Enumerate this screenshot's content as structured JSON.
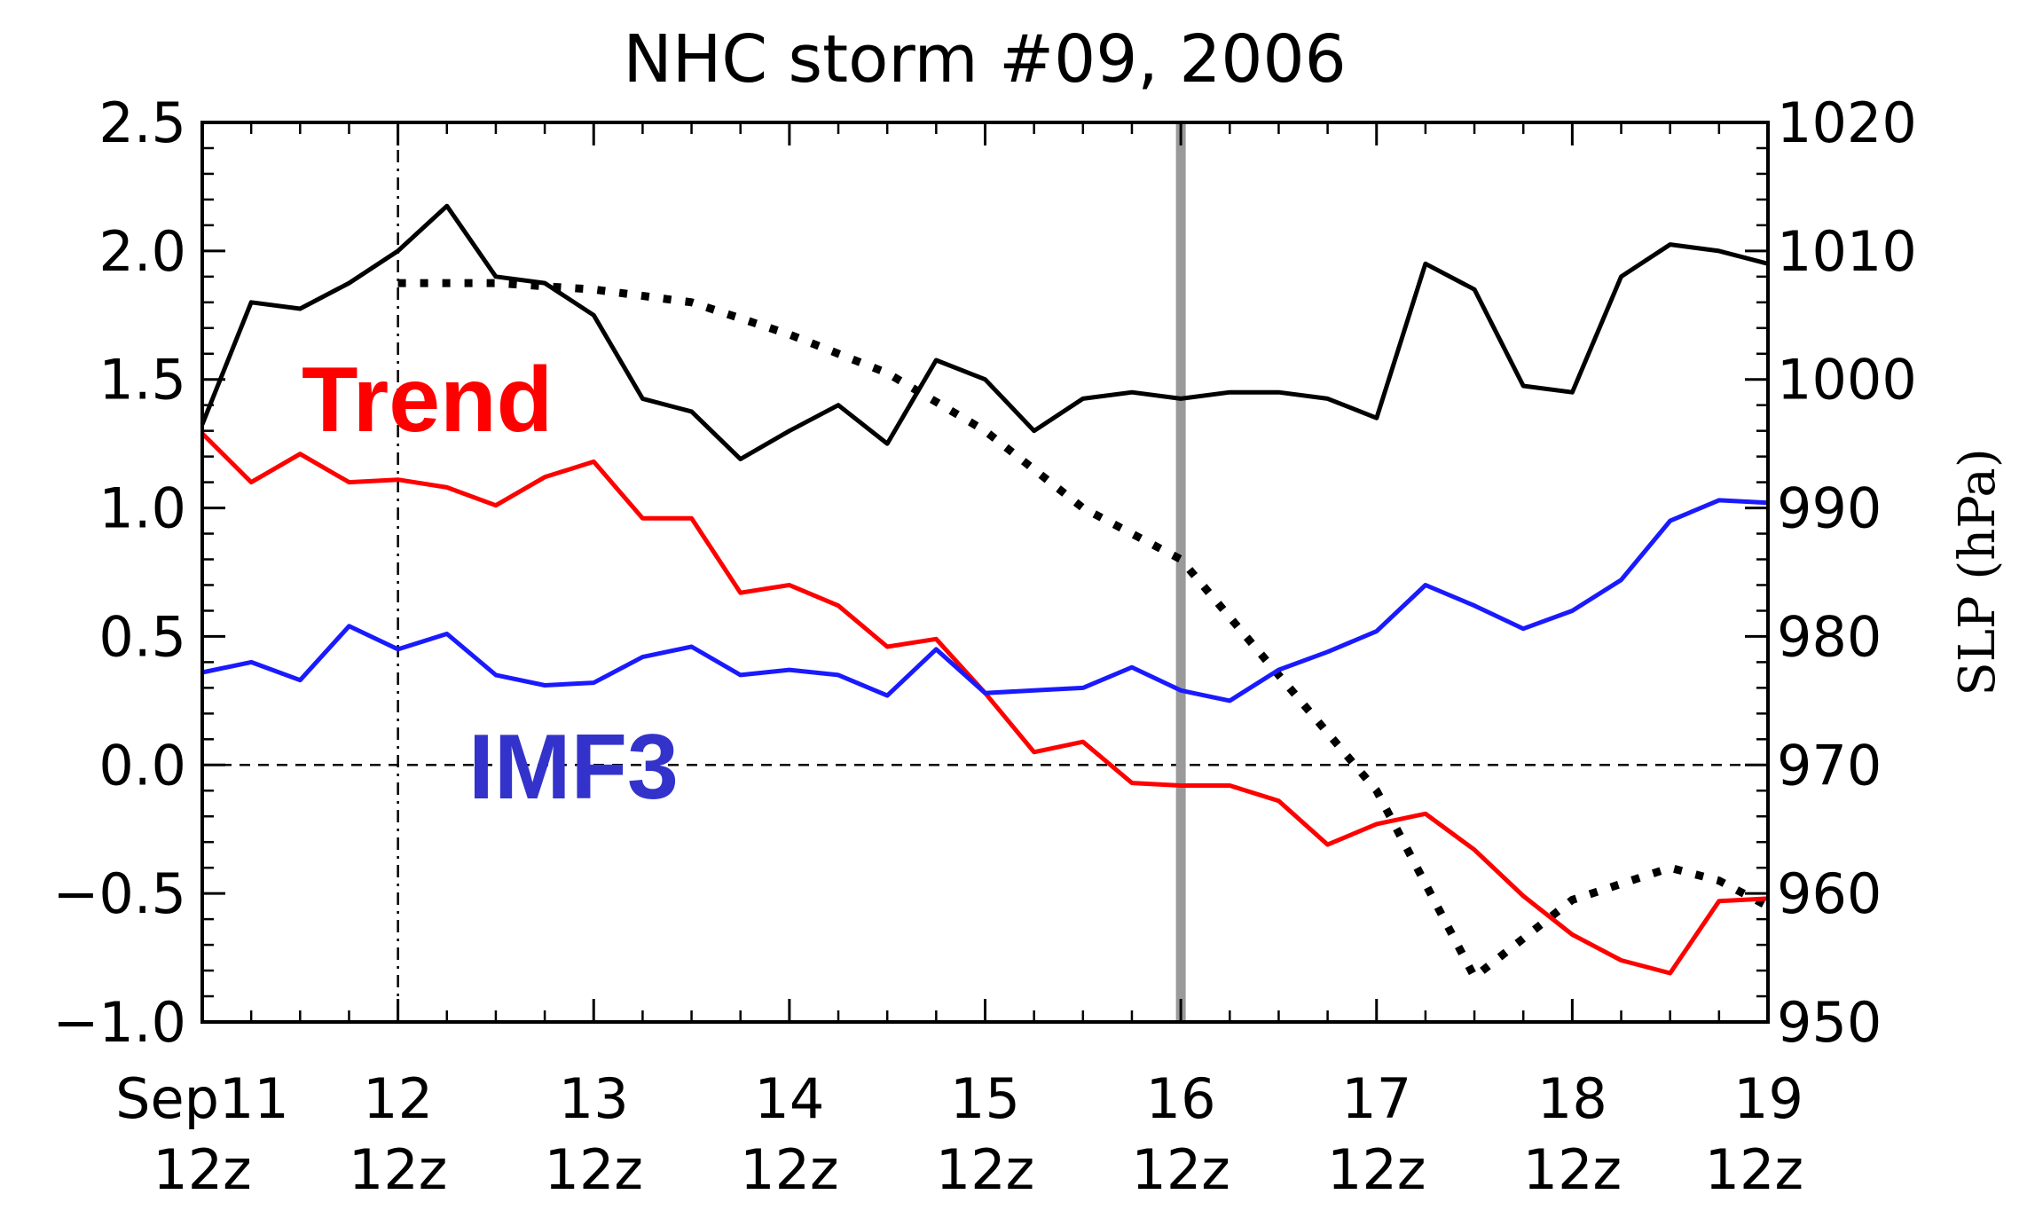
{
  "chart_data": {
    "type": "line",
    "title": "NHC storm #09,  2006",
    "x_ticks": [
      {
        "x": 0,
        "line1": "Sep11",
        "line2": "12z"
      },
      {
        "x": 1,
        "line1": "12",
        "line2": "12z"
      },
      {
        "x": 2,
        "line1": "13",
        "line2": "12z"
      },
      {
        "x": 3,
        "line1": "14",
        "line2": "12z"
      },
      {
        "x": 4,
        "line1": "15",
        "line2": "12z"
      },
      {
        "x": 5,
        "line1": "16",
        "line2": "12z"
      },
      {
        "x": 6,
        "line1": "17",
        "line2": "12z"
      },
      {
        "x": 7,
        "line1": "18",
        "line2": "12z"
      },
      {
        "x": 8,
        "line1": "19",
        "line2": "12z"
      }
    ],
    "xlim": [
      0,
      8
    ],
    "ylim_left": [
      -1.0,
      2.5
    ],
    "ylim_right": [
      950,
      1020
    ],
    "y_ticks_left": [
      "2.5",
      "2.0",
      "1.5",
      "1.0",
      "0.5",
      "0.0",
      "-0.5",
      "-1.0"
    ],
    "y_ticks_right": [
      "1020",
      "1010",
      "1000",
      "990",
      "980",
      "970",
      "960",
      "950"
    ],
    "ylabel_right": "SLP (hPa)",
    "reference_lines": [
      {
        "orientation": "horizontal",
        "axis": "left",
        "value": 0.0,
        "style": "dashed"
      },
      {
        "orientation": "vertical",
        "value": 1,
        "style": "dash-dot"
      },
      {
        "orientation": "vertical",
        "value": 5,
        "style": "solid-gray"
      }
    ],
    "annotations": [
      {
        "text": "Trend",
        "color": "#ff0000"
      },
      {
        "text": "IMF3",
        "color": "#3333cc"
      }
    ],
    "series": [
      {
        "name": "SLP",
        "axis": "right",
        "color": "#000000",
        "style": "solid",
        "x": [
          0,
          0.25,
          0.5,
          0.75,
          1.0,
          1.25,
          1.5,
          1.75,
          2.0,
          2.25,
          2.5,
          2.75,
          3.0,
          3.25,
          3.5,
          3.75,
          4.0,
          4.25,
          4.5,
          4.75,
          5.0,
          5.25,
          5.5,
          5.75,
          6.0,
          6.25,
          6.5,
          6.75,
          7.0,
          7.25,
          7.5,
          7.75,
          8.0
        ],
        "values": [
          996.5,
          1006,
          1005.5,
          1007.5,
          1010,
          1013.5,
          1008,
          1007.5,
          1005,
          998.5,
          997.5,
          993.8,
          996,
          998,
          995,
          1001.5,
          1000,
          996,
          998.5,
          999,
          998.5,
          999,
          999,
          998.5,
          997,
          1009,
          1007,
          999.5,
          999,
          1008,
          1010.5,
          1010,
          1009
        ]
      },
      {
        "name": "SLP dotted",
        "axis": "right",
        "color": "#000000",
        "style": "dotted",
        "x": [
          1.0,
          1.5,
          2.0,
          2.5,
          3.0,
          3.5,
          4.0,
          4.5,
          5.0,
          5.5,
          6.0,
          6.5,
          7.0,
          7.5,
          7.75,
          8.0
        ],
        "values": [
          1007.5,
          1007.5,
          1007,
          1006,
          1003.5,
          1000.5,
          996,
          990,
          986,
          977,
          968,
          953.5,
          959.5,
          962,
          961,
          959
        ]
      },
      {
        "name": "Trend",
        "axis": "left",
        "color": "#ff0000",
        "style": "solid",
        "x": [
          0,
          0.25,
          0.5,
          0.75,
          1.0,
          1.25,
          1.5,
          1.75,
          2.0,
          2.25,
          2.5,
          2.75,
          3.0,
          3.25,
          3.5,
          3.75,
          4.0,
          4.25,
          4.5,
          4.75,
          5.0,
          5.25,
          5.5,
          5.75,
          6.0,
          6.25,
          6.5,
          6.75,
          7.0,
          7.25,
          7.5,
          7.75,
          8.0
        ],
        "values": [
          1.29,
          1.1,
          1.21,
          1.1,
          1.11,
          1.08,
          1.01,
          1.12,
          1.18,
          0.96,
          0.96,
          0.67,
          0.7,
          0.62,
          0.46,
          0.49,
          0.28,
          0.05,
          0.09,
          -0.07,
          -0.08,
          -0.08,
          -0.14,
          -0.31,
          -0.23,
          -0.19,
          -0.33,
          -0.51,
          -0.66,
          -0.76,
          -0.81,
          -0.53,
          -0.52
        ]
      },
      {
        "name": "IMF3",
        "axis": "left",
        "color": "#1a1aff",
        "style": "solid",
        "x": [
          0,
          0.25,
          0.5,
          0.75,
          1.0,
          1.25,
          1.5,
          1.75,
          2.0,
          2.25,
          2.5,
          2.75,
          3.0,
          3.25,
          3.5,
          3.75,
          4.0,
          4.25,
          4.5,
          4.75,
          5.0,
          5.25,
          5.5,
          5.75,
          6.0,
          6.25,
          6.5,
          6.75,
          7.0,
          7.25,
          7.5,
          7.75,
          8.0
        ],
        "values": [
          0.36,
          0.4,
          0.33,
          0.54,
          0.45,
          0.51,
          0.35,
          0.31,
          0.32,
          0.42,
          0.46,
          0.35,
          0.37,
          0.35,
          0.27,
          0.45,
          0.28,
          0.29,
          0.3,
          0.38,
          0.29,
          0.25,
          0.37,
          0.44,
          0.52,
          0.7,
          0.62,
          0.53,
          0.6,
          0.72,
          0.95,
          1.03,
          1.02
        ]
      }
    ]
  }
}
